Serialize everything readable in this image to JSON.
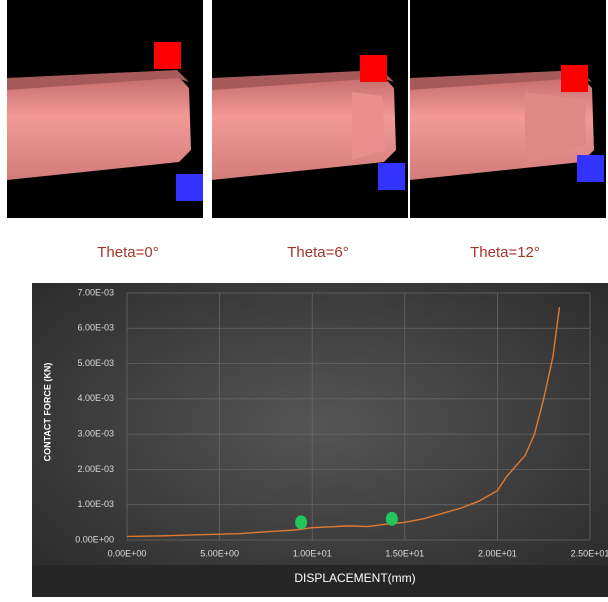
{
  "panels": [
    {
      "label": "Theta=0°"
    },
    {
      "label": "Theta=6°"
    },
    {
      "label": "Theta=12°"
    }
  ],
  "chart_data": {
    "type": "line",
    "x_label": "DISPLACEMENT(mm)",
    "y_label": "CONTACT FORCE (KN)",
    "xlim": [
      0,
      25
    ],
    "ylim": [
      0,
      0.007
    ],
    "xticks": [
      {
        "value": 0,
        "label": "0.00E+00"
      },
      {
        "value": 5,
        "label": "5.00E+00"
      },
      {
        "value": 10,
        "label": "1.00E+01"
      },
      {
        "value": 15,
        "label": "1.50E+01"
      },
      {
        "value": 20,
        "label": "2.00E+01"
      },
      {
        "value": 25,
        "label": "2.50E+01"
      }
    ],
    "yticks": [
      {
        "value": 0,
        "label": "0.00E+00"
      },
      {
        "value": 0.001,
        "label": "1.00E-03"
      },
      {
        "value": 0.002,
        "label": "2.00E-03"
      },
      {
        "value": 0.003,
        "label": "3.00E-03"
      },
      {
        "value": 0.004,
        "label": "4.00E-03"
      },
      {
        "value": 0.005,
        "label": "5.00E-03"
      },
      {
        "value": 0.006,
        "label": "6.00E-03"
      },
      {
        "value": 0.007,
        "label": "7.00E-03"
      }
    ],
    "grid": true,
    "series": [
      {
        "color": "#e07a30",
        "x": [
          0,
          2,
          4,
          6,
          8,
          9,
          10,
          12,
          13,
          14,
          15,
          16,
          17,
          18,
          19,
          20,
          20.5,
          21,
          21.5,
          22,
          22.5,
          23,
          23.35
        ],
        "values": [
          0.0001,
          0.00012,
          0.00015,
          0.00018,
          0.00025,
          0.00028,
          0.00035,
          0.0004,
          0.00038,
          0.00045,
          0.0005,
          0.0006,
          0.00075,
          0.0009,
          0.0011,
          0.0014,
          0.0018,
          0.0021,
          0.0024,
          0.003,
          0.004,
          0.0052,
          0.0066
        ]
      }
    ],
    "markers": {
      "color": "#22c55e",
      "x": [
        9.4,
        14.3
      ],
      "values": [
        0.0005,
        0.0006
      ]
    }
  }
}
